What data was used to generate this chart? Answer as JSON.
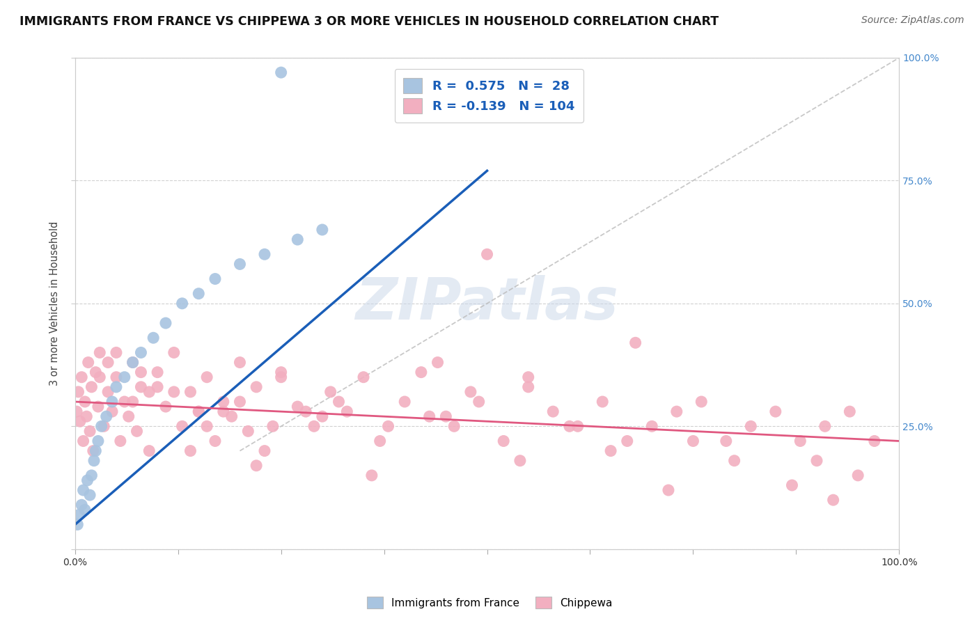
{
  "title": "IMMIGRANTS FROM FRANCE VS CHIPPEWA 3 OR MORE VEHICLES IN HOUSEHOLD CORRELATION CHART",
  "source": "Source: ZipAtlas.com",
  "ylabel": "3 or more Vehicles in Household",
  "blue_R": 0.575,
  "blue_N": 28,
  "pink_R": -0.139,
  "pink_N": 104,
  "blue_color": "#a8c4e0",
  "pink_color": "#f2afc0",
  "blue_line_color": "#1a5eb8",
  "pink_line_color": "#e05880",
  "ref_line_color": "#bbbbbb",
  "xlim": [
    0,
    100
  ],
  "ylim": [
    0,
    100
  ],
  "bg_color": "#ffffff",
  "grid_color": "#cccccc",
  "right_tick_color": "#4488cc",
  "blue_x": [
    0.3,
    0.5,
    0.8,
    1.0,
    1.2,
    1.5,
    1.8,
    2.0,
    2.3,
    2.5,
    2.8,
    3.2,
    3.8,
    4.5,
    5.0,
    6.0,
    7.0,
    8.0,
    9.5,
    11.0,
    13.0,
    15.0,
    17.0,
    20.0,
    23.0,
    27.0,
    25.0,
    30.0
  ],
  "blue_y": [
    5.0,
    7.0,
    9.0,
    12.0,
    8.0,
    14.0,
    11.0,
    15.0,
    18.0,
    20.0,
    22.0,
    25.0,
    27.0,
    30.0,
    33.0,
    35.0,
    38.0,
    40.0,
    43.0,
    46.0,
    50.0,
    52.0,
    55.0,
    58.0,
    60.0,
    63.0,
    97.0,
    65.0
  ],
  "pink_x": [
    0.2,
    0.4,
    0.6,
    0.8,
    1.0,
    1.2,
    1.4,
    1.6,
    1.8,
    2.0,
    2.2,
    2.5,
    2.8,
    3.0,
    3.5,
    4.0,
    4.5,
    5.0,
    5.5,
    6.0,
    6.5,
    7.0,
    7.5,
    8.0,
    9.0,
    10.0,
    11.0,
    12.0,
    13.0,
    14.0,
    15.0,
    16.0,
    17.0,
    18.0,
    19.0,
    20.0,
    21.0,
    22.0,
    23.0,
    25.0,
    27.0,
    29.0,
    31.0,
    33.0,
    35.0,
    37.0,
    40.0,
    43.0,
    46.0,
    49.0,
    52.0,
    55.0,
    58.0,
    61.0,
    64.0,
    67.0,
    70.0,
    73.0,
    76.0,
    79.0,
    82.0,
    85.0,
    88.0,
    91.0,
    94.0,
    97.0,
    50.0,
    55.0,
    42.0,
    38.0,
    30.0,
    25.0,
    20.0,
    15.0,
    10.0,
    5.0,
    8.0,
    12.0,
    18.0,
    24.0,
    32.0,
    45.0,
    60.0,
    75.0,
    90.0,
    3.0,
    7.0,
    16.0,
    28.0,
    48.0,
    65.0,
    80.0,
    95.0,
    4.0,
    9.0,
    14.0,
    22.0,
    36.0,
    54.0,
    72.0,
    87.0,
    92.0,
    44.0,
    68.0
  ],
  "pink_y": [
    28.0,
    32.0,
    26.0,
    35.0,
    22.0,
    30.0,
    27.0,
    38.0,
    24.0,
    33.0,
    20.0,
    36.0,
    29.0,
    40.0,
    25.0,
    32.0,
    28.0,
    35.0,
    22.0,
    30.0,
    27.0,
    38.0,
    24.0,
    33.0,
    20.0,
    36.0,
    29.0,
    40.0,
    25.0,
    32.0,
    28.0,
    35.0,
    22.0,
    30.0,
    27.0,
    38.0,
    24.0,
    33.0,
    20.0,
    36.0,
    29.0,
    25.0,
    32.0,
    28.0,
    35.0,
    22.0,
    30.0,
    27.0,
    25.0,
    30.0,
    22.0,
    35.0,
    28.0,
    25.0,
    30.0,
    22.0,
    25.0,
    28.0,
    30.0,
    22.0,
    25.0,
    28.0,
    22.0,
    25.0,
    28.0,
    22.0,
    60.0,
    33.0,
    36.0,
    25.0,
    27.0,
    35.0,
    30.0,
    28.0,
    33.0,
    40.0,
    36.0,
    32.0,
    28.0,
    25.0,
    30.0,
    27.0,
    25.0,
    22.0,
    18.0,
    35.0,
    30.0,
    25.0,
    28.0,
    32.0,
    20.0,
    18.0,
    15.0,
    38.0,
    32.0,
    20.0,
    17.0,
    15.0,
    18.0,
    12.0,
    13.0,
    10.0,
    38.0,
    42.0
  ],
  "blue_trend_x0": 0.0,
  "blue_trend_y0": 5.0,
  "blue_trend_x1": 50.0,
  "blue_trend_y1": 77.0,
  "pink_trend_x0": 0.0,
  "pink_trend_y0": 30.0,
  "pink_trend_x1": 100.0,
  "pink_trend_y1": 22.0,
  "ref_trend_x0": 20.0,
  "ref_trend_y0": 20.0,
  "ref_trend_x1": 100.0,
  "ref_trend_y1": 100.0
}
